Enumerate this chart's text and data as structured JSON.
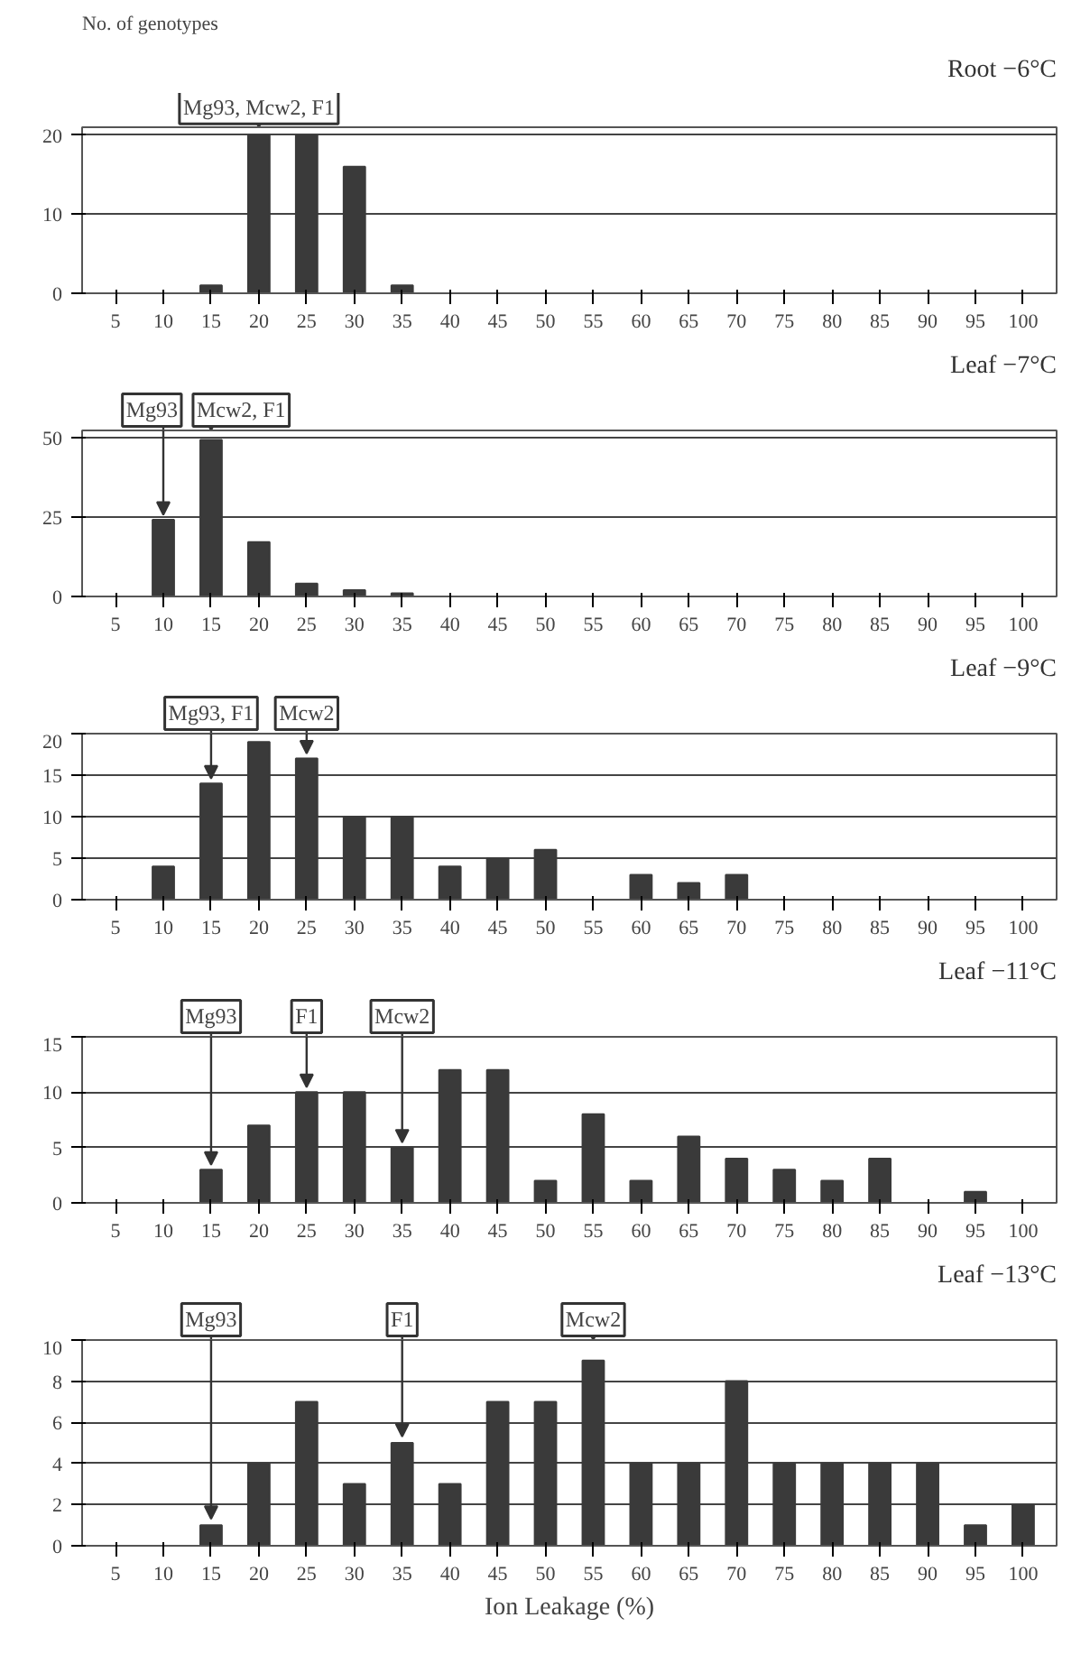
{
  "chart_data": [
    {
      "type": "bar",
      "title": "Root −6°C",
      "ylabel": "No. of genotypes",
      "categories": [
        "5",
        "10",
        "15",
        "20",
        "25",
        "30",
        "35",
        "40",
        "45",
        "50",
        "55",
        "60",
        "65",
        "70",
        "75",
        "80",
        "85",
        "90",
        "95",
        "100"
      ],
      "values": [
        0,
        0,
        1,
        20,
        20,
        16,
        1,
        0,
        0,
        0,
        0,
        0,
        0,
        0,
        0,
        0,
        0,
        0,
        0,
        0
      ],
      "color": "#3a3a3a",
      "ylim": [
        0,
        21
      ],
      "yticks": [
        0,
        10,
        20
      ],
      "grid": "y",
      "annotations": [
        {
          "text": "Mg93, Mcw2, F1",
          "x": "20",
          "y": 20
        }
      ]
    },
    {
      "type": "bar",
      "title": "Leaf −7°C",
      "categories": [
        "5",
        "10",
        "15",
        "20",
        "25",
        "30",
        "35",
        "40",
        "45",
        "50",
        "55",
        "60",
        "65",
        "70",
        "75",
        "80",
        "85",
        "90",
        "95",
        "100"
      ],
      "values": [
        0,
        24,
        49,
        17,
        4,
        2,
        1,
        0,
        0,
        0,
        0,
        0,
        0,
        0,
        0,
        0,
        0,
        0,
        0,
        0
      ],
      "color": "#3a3a3a",
      "ylim": [
        0,
        52
      ],
      "yticks": [
        0,
        25,
        50
      ],
      "grid": "y",
      "annotations": [
        {
          "text": "Mg93",
          "x": "10",
          "y": 24
        },
        {
          "text": "Mcw2, F1",
          "x": "15",
          "y": 49
        }
      ]
    },
    {
      "type": "bar",
      "title": "Leaf −9°C",
      "categories": [
        "5",
        "10",
        "15",
        "20",
        "25",
        "30",
        "35",
        "40",
        "45",
        "50",
        "55",
        "60",
        "65",
        "70",
        "75",
        "80",
        "85",
        "90",
        "95",
        "100"
      ],
      "values": [
        0,
        4,
        14,
        19,
        17,
        10,
        10,
        4,
        5,
        6,
        0,
        3,
        2,
        3,
        0,
        0,
        0,
        0,
        0,
        0
      ],
      "color": "#3a3a3a",
      "ylim": [
        0,
        20
      ],
      "yticks": [
        0,
        5,
        10,
        15,
        20
      ],
      "grid": "y",
      "annotations": [
        {
          "text": "Mg93, F1",
          "x": "15",
          "y": 14
        },
        {
          "text": "Mcw2",
          "x": "25",
          "y": 17
        }
      ]
    },
    {
      "type": "bar",
      "title": "Leaf −11°C",
      "categories": [
        "5",
        "10",
        "15",
        "20",
        "25",
        "30",
        "35",
        "40",
        "45",
        "50",
        "55",
        "60",
        "65",
        "70",
        "75",
        "80",
        "85",
        "90",
        "95",
        "100"
      ],
      "values": [
        0,
        0,
        3,
        7,
        10,
        10,
        5,
        12,
        12,
        2,
        8,
        2,
        6,
        4,
        3,
        2,
        4,
        0,
        1,
        0
      ],
      "color": "#3a3a3a",
      "ylim": [
        0,
        15
      ],
      "yticks": [
        0,
        5,
        10,
        15
      ],
      "grid": "y",
      "annotations": [
        {
          "text": "Mg93",
          "x": "15",
          "y": 3
        },
        {
          "text": "F1",
          "x": "25",
          "y": 10
        },
        {
          "text": "Mcw2",
          "x": "35",
          "y": 5
        }
      ]
    },
    {
      "type": "bar",
      "title": "Leaf −13°C",
      "xlabel": "Ion Leakage (%)",
      "categories": [
        "5",
        "10",
        "15",
        "20",
        "25",
        "30",
        "35",
        "40",
        "45",
        "50",
        "55",
        "60",
        "65",
        "70",
        "75",
        "80",
        "85",
        "90",
        "95",
        "100"
      ],
      "values": [
        0,
        0,
        1,
        4,
        7,
        3,
        5,
        3,
        7,
        7,
        9,
        4,
        4,
        8,
        4,
        4,
        4,
        4,
        1,
        2
      ],
      "color": "#3a3a3a",
      "ylim": [
        0,
        10
      ],
      "yticks": [
        0,
        2,
        4,
        6,
        8,
        10
      ],
      "grid": "y",
      "annotations": [
        {
          "text": "Mg93",
          "x": "15",
          "y": 1
        },
        {
          "text": "F1",
          "x": "35",
          "y": 5
        },
        {
          "text": "Mcw2",
          "x": "55",
          "y": 9
        }
      ]
    }
  ]
}
